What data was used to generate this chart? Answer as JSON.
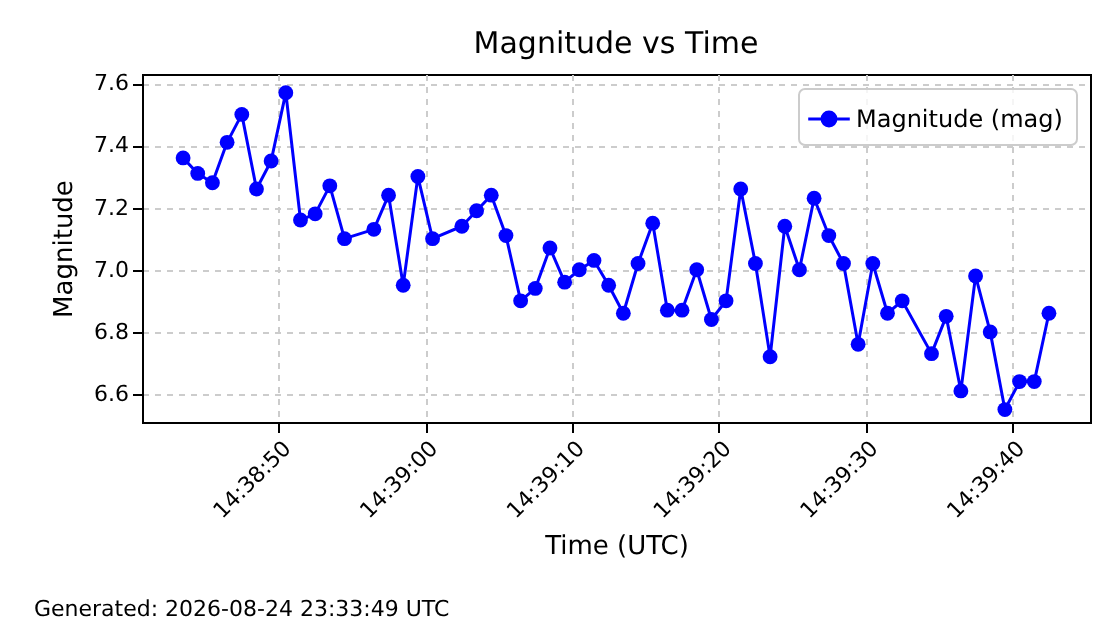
{
  "chart_data": {
    "type": "line",
    "title": "Magnitude vs Time",
    "xlabel": "Time (UTC)",
    "ylabel": "Magnitude",
    "x": [
      14.645417,
      14.645694,
      14.645972,
      14.64625,
      14.646528,
      14.646806,
      14.647083,
      14.647361,
      14.647639,
      14.647917,
      14.648194,
      14.648472,
      14.649028,
      14.649306,
      14.649583,
      14.649861,
      14.650139,
      14.650694,
      14.650972,
      14.65125,
      14.651528,
      14.651806,
      14.652083,
      14.652361,
      14.652639,
      14.652917,
      14.653194,
      14.653472,
      14.65375,
      14.654028,
      14.654306,
      14.654583,
      14.654861,
      14.655139,
      14.655417,
      14.655694,
      14.655972,
      14.65625,
      14.656528,
      14.656806,
      14.657083,
      14.657361,
      14.657639,
      14.657917,
      14.658194,
      14.658472,
      14.65875,
      14.659028,
      14.659583,
      14.659861,
      14.660139,
      14.660417,
      14.660694,
      14.660972,
      14.66125,
      14.661528,
      14.661806
    ],
    "series": [
      {
        "name": "Magnitude (mag)",
        "color": "#0000ff",
        "values": [
          7.36,
          7.31,
          7.28,
          7.41,
          7.5,
          7.26,
          7.35,
          7.57,
          7.16,
          7.18,
          7.27,
          7.1,
          7.13,
          7.24,
          6.95,
          7.3,
          7.1,
          7.14,
          7.19,
          7.24,
          7.11,
          6.9,
          6.94,
          7.07,
          6.96,
          7.0,
          7.03,
          6.95,
          6.86,
          7.02,
          7.15,
          6.87,
          6.87,
          7.0,
          6.84,
          6.9,
          7.26,
          7.02,
          6.72,
          7.14,
          7.0,
          7.23,
          7.11,
          7.02,
          6.76,
          7.02,
          6.86,
          6.9,
          6.73,
          6.85,
          6.61,
          6.98,
          6.8,
          6.55,
          6.64,
          6.64,
          6.86
        ]
      }
    ],
    "xlim": [
      14.644639,
      14.662583
    ],
    "xticks": [
      {
        "value": 14.647222,
        "label": "14:38:50"
      },
      {
        "value": 14.65,
        "label": "14:39:00"
      },
      {
        "value": 14.652778,
        "label": "14:39:10"
      },
      {
        "value": 14.655556,
        "label": "14:39:20"
      },
      {
        "value": 14.658333,
        "label": "14:39:30"
      },
      {
        "value": 14.661111,
        "label": "14:39:40"
      }
    ],
    "ylim": [
      6.51,
      7.63
    ],
    "yticks": [
      6.6,
      6.8,
      {
        "value": 7,
        "label": "7.0"
      },
      7.2,
      7.4,
      7.6
    ],
    "grid": true,
    "legend": "top right",
    "marker": "circle",
    "line_style": "solid",
    "annotations": [
      "Generated: 2026-08-24 23:33:49 UTC"
    ]
  }
}
